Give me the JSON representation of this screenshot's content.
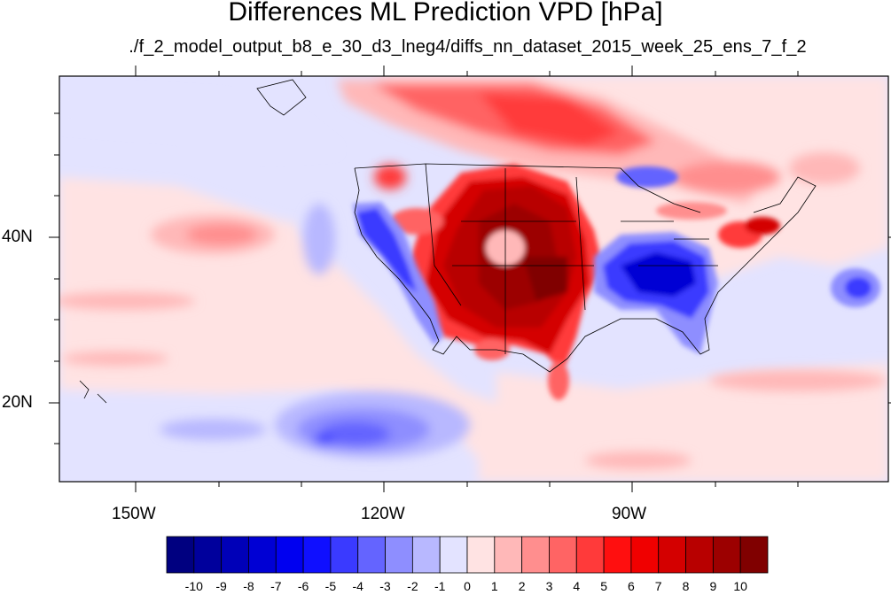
{
  "title": "Differences ML Prediction VPD [hPa]",
  "subtitle": "./f_2_model_output_b8_e_30_d3_lneg4/diffs_nn_dataset_2015_week_25_ens_7_f_2",
  "axes": {
    "lat_labels": [
      "40N",
      "20N"
    ],
    "lon_labels": [
      "150W",
      "120W",
      "90W"
    ]
  },
  "colorbar": {
    "tick_labels": [
      "-10",
      "-9",
      "-8",
      "-7",
      "-6",
      "-5",
      "-4",
      "-3",
      "-2",
      "-1",
      "0",
      "1",
      "2",
      "3",
      "4",
      "5",
      "6",
      "7",
      "8",
      "9",
      "10"
    ],
    "colors": [
      "#000080",
      "#00009c",
      "#0000b8",
      "#0000d4",
      "#0000f0",
      "#0f0fff",
      "#3a3aff",
      "#6464ff",
      "#8e8eff",
      "#b8b8ff",
      "#e3e3ff",
      "#ffe3e3",
      "#ffb8b8",
      "#ff8e8e",
      "#ff6464",
      "#ff3a3a",
      "#ff0f0f",
      "#f00000",
      "#d40000",
      "#b80000",
      "#9c0000",
      "#800000"
    ]
  }
}
